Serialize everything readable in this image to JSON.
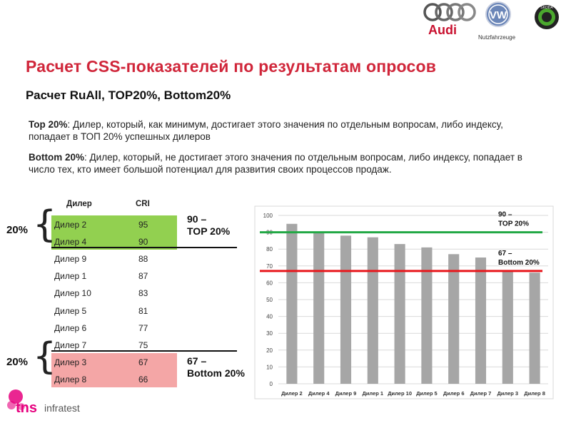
{
  "header": {
    "brands": [
      "Audi",
      "Nutzfahrzeuge",
      "ŠKODA"
    ]
  },
  "title": "Расчет CSS-показателей по результатам опросов",
  "subtitle": "Расчет  RuAll,  TOP20%,  Bottom20%",
  "definitions": {
    "top_term": "Top 20%",
    "top_text": ": Дилер, который, как минимум,  достигает этого значения по отдельным вопросам, либо индексу,  попадает в ТОП 20% успешных  дилеров",
    "bottom_term": "Bottom 20%",
    "bottom_text": ": Дилер, который, не достигает этого значения по отдельным вопросам, либо индексу,  попадает в число тех, кто имеет большой потенциал для развития своих процессов продаж."
  },
  "table": {
    "col_dealer": "Дилер",
    "col_cri": "CRI",
    "rows": [
      {
        "dealer": "Дилер 2",
        "cri": "95"
      },
      {
        "dealer": "Дилер 4",
        "cri": "90"
      },
      {
        "dealer": "Дилер 9",
        "cri": "88"
      },
      {
        "dealer": "Дилер 1",
        "cri": "87"
      },
      {
        "dealer": "Дилер 10",
        "cri": "83"
      },
      {
        "dealer": "Дилер 5",
        "cri": "81"
      },
      {
        "dealer": "Дилер 6",
        "cri": "77"
      },
      {
        "dealer": "Дилер 7",
        "cri": "75"
      },
      {
        "dealer": "Дилер 3",
        "cri": "67"
      },
      {
        "dealer": "Дилер 8",
        "cri": "66"
      }
    ],
    "top_pct": "20%",
    "bottom_pct": "20%",
    "top_threshold_line1": "90  –",
    "top_threshold_line2": "TOP 20%",
    "bottom_threshold_line1": "67  –",
    "bottom_threshold_line2": "Bottom 20%"
  },
  "chart_data": {
    "type": "bar",
    "categories": [
      "Дилер 2",
      "Дилер 4",
      "Дилер 9",
      "Дилер 1",
      "Дилер 10",
      "Дилер 5",
      "Дилер 6",
      "Дилер 7",
      "Дилер 3",
      "Дилер 8"
    ],
    "values": [
      95,
      90,
      88,
      87,
      83,
      81,
      77,
      75,
      67,
      66
    ],
    "ylim": [
      0,
      100
    ],
    "yticks": [
      0,
      10,
      20,
      30,
      40,
      50,
      60,
      70,
      80,
      90,
      100
    ],
    "grid": true,
    "bar_color": "#a6a6a6",
    "reference_lines": [
      {
        "value": 90,
        "color": "#22a845",
        "label_line1": "90  –",
        "label_line2": "TOP 20%"
      },
      {
        "value": 67,
        "color": "#e8161b",
        "label_line1": "67  –",
        "label_line2": "Bottom 20%"
      }
    ]
  },
  "footer": {
    "brand": "tns",
    "brand_sub": "infratest"
  },
  "colors": {
    "title": "#d0263a",
    "top_band": "#92d050",
    "bottom_band": "#f4a6a6",
    "tns_pink": "#e6007e"
  }
}
